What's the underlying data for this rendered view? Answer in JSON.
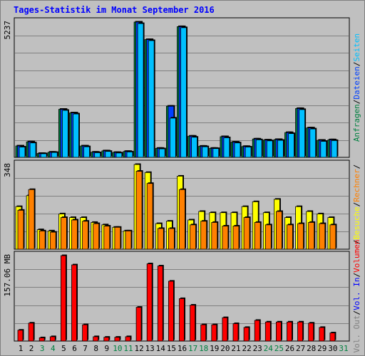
{
  "title": "Tages-Statistik im Monat September 2016",
  "colors": {
    "anfragen": "#008040",
    "dateien": "#0040ff",
    "seiten": "#00c0ff",
    "besuche": "#ffff00",
    "rechner": "#ff8000",
    "volumen": "#ff0000",
    "blue_label": "#0000ff",
    "weekend": "#008040",
    "weekday": "#000000",
    "panel": "#c0c0c0",
    "grid": "#808080"
  },
  "right_legend": {
    "panel1": [
      {
        "text": "Anfragen",
        "color": "#008040"
      },
      {
        "text": "/",
        "color": "#000000"
      },
      {
        "text": "Dateien",
        "color": "#0040ff"
      },
      {
        "text": "/",
        "color": "#000000"
      },
      {
        "text": "Seiten",
        "color": "#00c0ff"
      }
    ],
    "panel2": [
      {
        "text": "/",
        "color": "#000000"
      },
      {
        "text": "Besuche",
        "color": "#ffff00"
      },
      {
        "text": "/",
        "color": "#000000"
      },
      {
        "text": "Rechner",
        "color": "#ff8000"
      },
      {
        "text": "/",
        "color": "#000000"
      }
    ],
    "panel3": [
      {
        "text": "Vol. Out",
        "color": "#808080"
      },
      {
        "text": "/",
        "color": "#000000"
      },
      {
        "text": "Vol. In",
        "color": "#0000ff"
      },
      {
        "text": "/",
        "color": "#000000"
      },
      {
        "text": "Volumen",
        "color": "#ff0000"
      }
    ]
  },
  "chart_data": [
    {
      "type": "bar",
      "name": "panel1",
      "ymax_label": "5237",
      "ymax": 5237,
      "series": [
        {
          "name": "Anfragen",
          "values": [
            440,
            600,
            150,
            200,
            1860,
            1720,
            440,
            200,
            250,
            190,
            230,
            5237,
            4560,
            350,
            1980,
            5060,
            820,
            430,
            350,
            800,
            590,
            420,
            710,
            670,
            690,
            960,
            1890,
            1140,
            660,
            680
          ]
        },
        {
          "name": "Dateien",
          "values": [
            440,
            600,
            150,
            200,
            1860,
            1720,
            440,
            200,
            250,
            190,
            230,
            5237,
            4560,
            350,
            1980,
            5060,
            820,
            430,
            350,
            800,
            590,
            420,
            710,
            670,
            690,
            960,
            1890,
            1140,
            660,
            680
          ]
        },
        {
          "name": "Seiten",
          "values": [
            400,
            560,
            140,
            190,
            1820,
            1680,
            410,
            180,
            230,
            170,
            210,
            5180,
            4520,
            330,
            1520,
            5020,
            780,
            410,
            340,
            760,
            560,
            400,
            680,
            640,
            660,
            920,
            1850,
            1100,
            620,
            650
          ]
        }
      ]
    },
    {
      "type": "bar",
      "name": "panel2",
      "ymax_label": "348",
      "ymax": 348,
      "series": [
        {
          "name": "Besuche",
          "values": [
            175,
            220,
            80,
            75,
            145,
            130,
            130,
            110,
            100,
            90,
            75,
            348,
            315,
            105,
            115,
            300,
            120,
            155,
            150,
            150,
            150,
            175,
            195,
            150,
            205,
            130,
            175,
            155,
            145,
            130
          ]
        },
        {
          "name": "Rechner",
          "values": [
            160,
            245,
            75,
            70,
            130,
            120,
            115,
            105,
            95,
            90,
            75,
            320,
            270,
            85,
            85,
            245,
            100,
            115,
            110,
            95,
            95,
            130,
            110,
            100,
            155,
            100,
            105,
            110,
            105,
            100
          ]
        }
      ]
    },
    {
      "type": "bar",
      "name": "panel3",
      "ymax_label": "157.06 MB",
      "ymax": 157.06,
      "series": [
        {
          "name": "Volumen",
          "values": [
            20,
            33,
            6,
            8,
            157,
            140,
            30,
            8,
            7,
            7,
            8,
            62,
            142,
            138,
            110,
            78,
            66,
            30,
            30,
            43,
            32,
            25,
            38,
            35,
            35,
            35,
            35,
            33,
            25,
            15
          ]
        }
      ]
    }
  ],
  "x_labels": [
    {
      "text": "1",
      "weekend": false
    },
    {
      "text": "2",
      "weekend": false
    },
    {
      "text": "3",
      "weekend": true
    },
    {
      "text": "4",
      "weekend": true
    },
    {
      "text": "5",
      "weekend": false
    },
    {
      "text": "6",
      "weekend": false
    },
    {
      "text": "7",
      "weekend": false
    },
    {
      "text": "8",
      "weekend": false
    },
    {
      "text": "9",
      "weekend": false
    },
    {
      "text": "10",
      "weekend": true
    },
    {
      "text": "11",
      "weekend": true
    },
    {
      "text": "12",
      "weekend": false
    },
    {
      "text": "13",
      "weekend": false
    },
    {
      "text": "14",
      "weekend": false
    },
    {
      "text": "15",
      "weekend": false
    },
    {
      "text": "16",
      "weekend": false
    },
    {
      "text": "17",
      "weekend": true
    },
    {
      "text": "18",
      "weekend": true
    },
    {
      "text": "19",
      "weekend": false
    },
    {
      "text": "20",
      "weekend": false
    },
    {
      "text": "21",
      "weekend": false
    },
    {
      "text": "22",
      "weekend": false
    },
    {
      "text": "23",
      "weekend": false
    },
    {
      "text": "24",
      "weekend": true
    },
    {
      "text": "25",
      "weekend": true
    },
    {
      "text": "26",
      "weekend": false
    },
    {
      "text": "27",
      "weekend": false
    },
    {
      "text": "28",
      "weekend": false
    },
    {
      "text": "29",
      "weekend": false
    },
    {
      "text": "30",
      "weekend": false
    },
    {
      "text": "31",
      "weekend": true
    }
  ]
}
